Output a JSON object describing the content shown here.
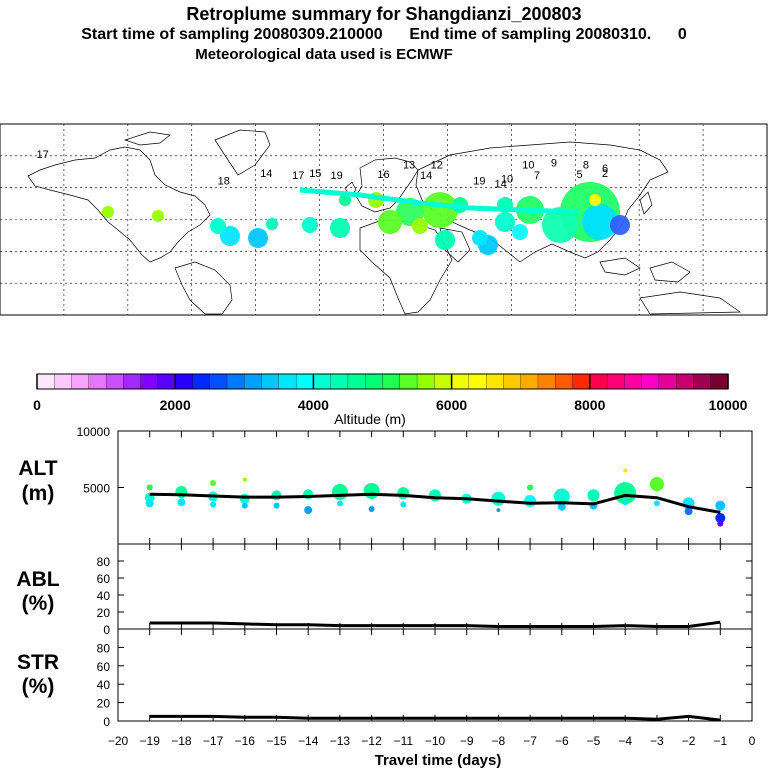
{
  "header": {
    "title": "Retroplume summary for Shangdianzi_200803",
    "sampling": "Start time of sampling 20080309.210000      End time of sampling 20080310.      0",
    "met": "Meteorological data used is ECMWF"
  },
  "colorbar": {
    "label": "Altitude (m)",
    "ticks": [
      "0",
      "2000",
      "4000",
      "6000",
      "8000",
      "10000"
    ],
    "colors": [
      "#ffe6ff",
      "#ffc8ff",
      "#f5a5ff",
      "#e178ff",
      "#c850ff",
      "#a528ff",
      "#8200ff",
      "#5a00ff",
      "#2800ff",
      "#0028ff",
      "#0050ff",
      "#0078ff",
      "#00a0ff",
      "#00c8ff",
      "#00e6ff",
      "#00ffff",
      "#00ffd2",
      "#00ffb4",
      "#00ff96",
      "#00ff78",
      "#1eff50",
      "#5aff28",
      "#96ff00",
      "#c8ff00",
      "#f0ff00",
      "#ffff00",
      "#ffe600",
      "#ffc800",
      "#ffaa00",
      "#ff8200",
      "#ff5a00",
      "#ff2800",
      "#ff0050",
      "#ff0078",
      "#ff00a0",
      "#ff00c8",
      "#e6009b",
      "#c8006e",
      "#a00050",
      "#780032"
    ]
  },
  "panels": {
    "alt": {
      "label1": "ALT",
      "label2": "(m)"
    },
    "abl": {
      "label1": "ABL",
      "label2": "(%)"
    },
    "str": {
      "label1": "STR",
      "label2": "(%)"
    }
  },
  "map_labels": [
    {
      "t": "10",
      "lon": 68,
      "lat": 48
    },
    {
      "t": "9",
      "lon": 80,
      "lat": 50
    },
    {
      "t": "8",
      "lon": 95,
      "lat": 48
    },
    {
      "t": "6",
      "lon": 104,
      "lat": 45
    },
    {
      "t": "7",
      "lon": 72,
      "lat": 38
    },
    {
      "t": "5",
      "lon": 92,
      "lat": 39
    },
    {
      "t": "2",
      "lon": 104,
      "lat": 40
    },
    {
      "t": "12",
      "lon": 25,
      "lat": 48
    },
    {
      "t": "13",
      "lon": 12,
      "lat": 48
    },
    {
      "t": "14",
      "lon": 20,
      "lat": 38
    },
    {
      "t": "16",
      "lon": 0,
      "lat": 39
    },
    {
      "t": "19",
      "lon": -22,
      "lat": 38
    },
    {
      "t": "15",
      "lon": -32,
      "lat": 40
    },
    {
      "t": "17",
      "lon": -40,
      "lat": 38
    },
    {
      "t": "18",
      "lon": -75,
      "lat": 33
    },
    {
      "t": "14",
      "lon": -55,
      "lat": 40
    },
    {
      "t": "19",
      "lon": 45,
      "lat": 33
    },
    {
      "t": "10",
      "lon": 58,
      "lat": 35
    },
    {
      "t": "14",
      "lon": 55,
      "lat": 30
    },
    {
      "t": "17",
      "lon": -160,
      "lat": 58
    }
  ],
  "chart_data": {
    "type": "line",
    "x_label": "Travel time (days)",
    "x_ticks": [
      -20,
      -19,
      -18,
      -17,
      -16,
      -15,
      -14,
      -13,
      -12,
      -11,
      -10,
      -9,
      -8,
      -7,
      -6,
      -5,
      -4,
      -3,
      -2,
      -1,
      0
    ],
    "xlim": [
      -20,
      0
    ],
    "alt": {
      "ylim": [
        0,
        10000
      ],
      "y_ticks": [
        5000,
        10000
      ],
      "x": [
        -19,
        -18,
        -17,
        -16,
        -15,
        -14,
        -13,
        -12,
        -11,
        -10,
        -9,
        -8,
        -7,
        -6,
        -5,
        -4,
        -3,
        -2,
        -1
      ],
      "y": [
        4400,
        4350,
        4250,
        4150,
        4150,
        4200,
        4300,
        4400,
        4300,
        4100,
        4000,
        3800,
        3600,
        3650,
        3550,
        4300,
        4100,
        3300,
        2800
      ],
      "points": [
        {
          "x": -19,
          "y": 4100,
          "r": 5
        },
        {
          "x": -19,
          "y": 3600,
          "r": 4
        },
        {
          "x": -19,
          "y": 5000,
          "r": 3
        },
        {
          "x": -18,
          "y": 4600,
          "r": 6
        },
        {
          "x": -18,
          "y": 3700,
          "r": 4
        },
        {
          "x": -17,
          "y": 4200,
          "r": 5
        },
        {
          "x": -17,
          "y": 5400,
          "r": 3
        },
        {
          "x": -17,
          "y": 3500,
          "r": 3
        },
        {
          "x": -16,
          "y": 4000,
          "r": 5
        },
        {
          "x": -16,
          "y": 5700,
          "r": 2
        },
        {
          "x": -16,
          "y": 3400,
          "r": 3
        },
        {
          "x": -15,
          "y": 4300,
          "r": 5
        },
        {
          "x": -15,
          "y": 3400,
          "r": 3
        },
        {
          "x": -14,
          "y": 4400,
          "r": 5
        },
        {
          "x": -14,
          "y": 3000,
          "r": 4
        },
        {
          "x": -13,
          "y": 4600,
          "r": 8
        },
        {
          "x": -13,
          "y": 3600,
          "r": 3
        },
        {
          "x": -12,
          "y": 4700,
          "r": 8
        },
        {
          "x": -12,
          "y": 3100,
          "r": 3
        },
        {
          "x": -11,
          "y": 4500,
          "r": 6
        },
        {
          "x": -11,
          "y": 3500,
          "r": 3
        },
        {
          "x": -10,
          "y": 4300,
          "r": 6
        },
        {
          "x": -9,
          "y": 4000,
          "r": 5
        },
        {
          "x": -8,
          "y": 4000,
          "r": 7
        },
        {
          "x": -8,
          "y": 3000,
          "r": 2
        },
        {
          "x": -7,
          "y": 3800,
          "r": 6
        },
        {
          "x": -7,
          "y": 5000,
          "r": 3
        },
        {
          "x": -6,
          "y": 4200,
          "r": 8
        },
        {
          "x": -6,
          "y": 3300,
          "r": 4
        },
        {
          "x": -5,
          "y": 4300,
          "r": 6
        },
        {
          "x": -5,
          "y": 3400,
          "r": 4
        },
        {
          "x": -4,
          "y": 4500,
          "r": 11
        },
        {
          "x": -4,
          "y": 6500,
          "r": 2
        },
        {
          "x": -4,
          "y": 3700,
          "r": 3
        },
        {
          "x": -3,
          "y": 5300,
          "r": 7
        },
        {
          "x": -3,
          "y": 3600,
          "r": 3
        },
        {
          "x": -2,
          "y": 3600,
          "r": 6
        },
        {
          "x": -2,
          "y": 2900,
          "r": 4
        },
        {
          "x": -1,
          "y": 3400,
          "r": 5
        },
        {
          "x": -1,
          "y": 2300,
          "r": 5
        },
        {
          "x": -1,
          "y": 1800,
          "r": 3
        }
      ]
    },
    "abl": {
      "ylim": [
        0,
        100
      ],
      "y_ticks": [
        0,
        20,
        40,
        60,
        80
      ],
      "x": [
        -19,
        -18,
        -17,
        -16,
        -15,
        -14,
        -13,
        -12,
        -11,
        -10,
        -9,
        -8,
        -7,
        -6,
        -5,
        -4,
        -3,
        -2,
        -1
      ],
      "y": [
        7,
        7,
        7,
        6,
        5,
        5,
        4,
        4,
        4,
        4,
        4,
        3,
        3,
        3,
        3,
        4,
        3,
        3,
        8
      ]
    },
    "str": {
      "ylim": [
        0,
        100
      ],
      "y_ticks": [
        0,
        20,
        40,
        60,
        80
      ],
      "x": [
        -19,
        -18,
        -17,
        -16,
        -15,
        -14,
        -13,
        -12,
        -11,
        -10,
        -9,
        -8,
        -7,
        -6,
        -5,
        -4,
        -3,
        -2,
        -1
      ],
      "y": [
        5,
        5,
        5,
        4,
        4,
        3,
        3,
        3,
        3,
        3,
        3,
        3,
        3,
        3,
        3,
        3,
        2,
        5,
        1
      ]
    }
  }
}
